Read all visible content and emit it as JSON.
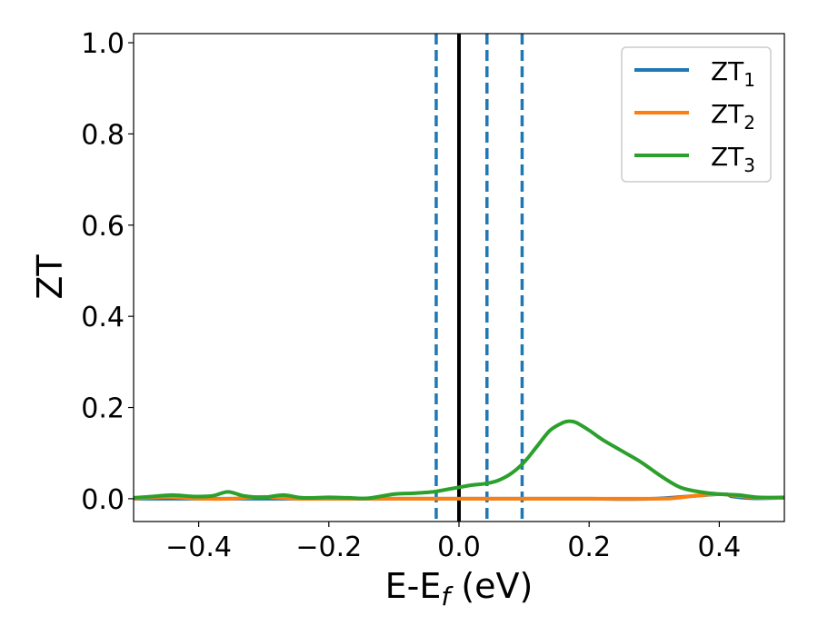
{
  "chart_data": {
    "type": "line",
    "xlabel": "E-E",
    "xlabel_sub": "f",
    "xlabel_unit": " (eV)",
    "ylabel": "ZT",
    "xlim": [
      -0.5,
      0.5
    ],
    "ylim": [
      -0.05,
      1.02
    ],
    "x_ticks": [
      -0.4,
      -0.2,
      0.0,
      0.2,
      0.4
    ],
    "x_tick_labels": [
      "−0.4",
      "−0.2",
      "0.0",
      "0.2",
      "0.4"
    ],
    "y_ticks": [
      0.0,
      0.2,
      0.4,
      0.6,
      0.8,
      1.0
    ],
    "y_tick_labels": [
      "0.0",
      "0.2",
      "0.4",
      "0.6",
      "0.8",
      "1.0"
    ],
    "grid": false,
    "legend_position": "top-right",
    "series": [
      {
        "name": "ZT",
        "name_sub": "1",
        "color": "#1f77b4",
        "x": [
          -0.5,
          -0.4,
          -0.3,
          -0.2,
          -0.1,
          0.0,
          0.1,
          0.2,
          0.3,
          0.4,
          0.42,
          0.45,
          0.5
        ],
        "y": [
          0.0,
          0.0,
          0.0,
          0.0,
          0.0,
          0.0,
          0.0,
          0.0,
          0.0,
          0.01,
          0.005,
          0.001,
          0.002
        ]
      },
      {
        "name": "ZT",
        "name_sub": "2",
        "color": "#ff7f0e",
        "x": [
          -0.5,
          -0.45,
          -0.4,
          -0.35,
          -0.3,
          -0.25,
          -0.2,
          -0.1,
          0.0,
          0.1,
          0.2,
          0.3,
          0.33,
          0.36,
          0.4,
          0.43,
          0.46,
          0.5
        ],
        "y": [
          0.0,
          0.004,
          0.0,
          0.0,
          0.004,
          0.0,
          0.0,
          0.0,
          0.0,
          0.0,
          0.0,
          0.0,
          0.001,
          0.006,
          0.01,
          0.006,
          0.002,
          0.002
        ]
      },
      {
        "name": "ZT",
        "name_sub": "3",
        "color": "#2ca02c",
        "x": [
          -0.5,
          -0.47,
          -0.44,
          -0.41,
          -0.38,
          -0.355,
          -0.33,
          -0.3,
          -0.27,
          -0.24,
          -0.2,
          -0.17,
          -0.14,
          -0.1,
          -0.07,
          -0.04,
          -0.02,
          0.0,
          0.02,
          0.04,
          0.06,
          0.08,
          0.1,
          0.12,
          0.14,
          0.16,
          0.17,
          0.18,
          0.2,
          0.22,
          0.25,
          0.28,
          0.31,
          0.34,
          0.37,
          0.4,
          0.43,
          0.46,
          0.5
        ],
        "y": [
          0.002,
          0.005,
          0.008,
          0.005,
          0.006,
          0.015,
          0.006,
          0.003,
          0.008,
          0.002,
          0.003,
          0.002,
          0.001,
          0.01,
          0.012,
          0.015,
          0.02,
          0.025,
          0.03,
          0.033,
          0.04,
          0.055,
          0.08,
          0.115,
          0.15,
          0.167,
          0.17,
          0.167,
          0.15,
          0.13,
          0.105,
          0.08,
          0.05,
          0.025,
          0.015,
          0.01,
          0.008,
          0.003,
          0.003
        ]
      }
    ],
    "vertical_lines": [
      {
        "x": -0.035,
        "style": "dashed",
        "color": "#1f77b4"
      },
      {
        "x": 0.0,
        "style": "solid",
        "color": "#000000"
      },
      {
        "x": 0.043,
        "style": "dashed",
        "color": "#1f77b4"
      },
      {
        "x": 0.097,
        "style": "dashed",
        "color": "#1f77b4"
      }
    ]
  }
}
